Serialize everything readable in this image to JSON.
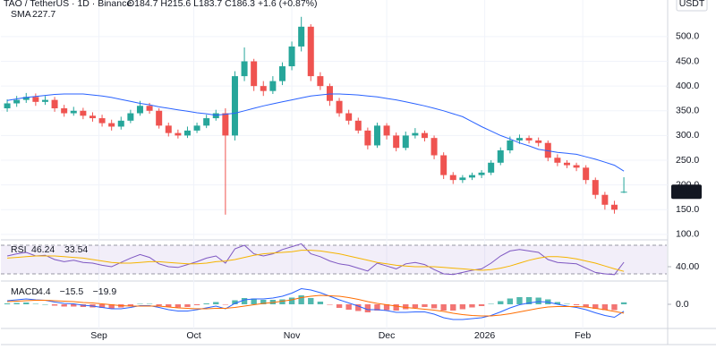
{
  "chart_data": [
    {
      "type": "candlestick",
      "title": "TAO / TetherUS · 1D · Binance",
      "ohlc_legend": "O184.7 H215.6 L183.7 C186.3 +1.6 (+0.87%)",
      "currency": "USDT",
      "last_price": 186.3,
      "x": [
        0,
        3,
        6,
        9,
        12,
        15,
        18,
        21,
        24,
        27,
        30,
        33,
        36,
        39,
        42,
        45,
        48,
        51,
        54,
        57,
        60,
        63,
        66,
        69,
        72,
        75,
        78,
        81,
        84,
        87,
        90,
        93,
        96,
        99,
        102,
        105,
        108,
        111,
        114,
        117,
        120,
        123,
        126,
        129,
        132,
        135,
        138,
        141,
        144,
        147,
        150,
        153,
        156,
        159,
        162,
        165,
        168,
        171,
        174,
        177,
        180,
        183,
        186,
        189,
        192,
        195
      ],
      "xlim": [
        -2,
        208
      ],
      "xticks": [
        {
          "value": 29,
          "label": "Sep"
        },
        {
          "value": 59,
          "label": "Oct"
        },
        {
          "value": 90,
          "label": "Nov"
        },
        {
          "value": 120,
          "label": "Dec"
        },
        {
          "value": 151,
          "label": "2026"
        },
        {
          "value": 182,
          "label": "Feb"
        }
      ],
      "ylim": [
        89,
        574
      ],
      "yticks": [
        {
          "value": 100,
          "label": "100.0"
        },
        {
          "value": 150,
          "label": "150.0"
        },
        {
          "value": 200,
          "label": "200.0"
        },
        {
          "value": 250,
          "label": "250.0"
        },
        {
          "value": 300,
          "label": "300.0"
        },
        {
          "value": 350,
          "label": "350.0"
        },
        {
          "value": 400,
          "label": "400.0"
        },
        {
          "value": 450,
          "label": "450.0"
        },
        {
          "value": 500,
          "label": "500.0"
        }
      ],
      "grid": true,
      "up_color": "#26a69a",
      "down_color": "#ef5350",
      "open": [
        355,
        365,
        372,
        378,
        368,
        372,
        355,
        345,
        350,
        340,
        335,
        325,
        318,
        330,
        345,
        360,
        350,
        320,
        305,
        300,
        310,
        320,
        335,
        345,
        300,
        420,
        450,
        400,
        390,
        410,
        440,
        480,
        520,
        420,
        400,
        370,
        345,
        330,
        310,
        280,
        320,
        300,
        275,
        300,
        305,
        295,
        260,
        220,
        210,
        215,
        220,
        225,
        245,
        270,
        290,
        295,
        290,
        285,
        255,
        245,
        240,
        235,
        210,
        180,
        160,
        184.7
      ],
      "high": [
        373,
        380,
        386,
        385,
        380,
        378,
        362,
        358,
        356,
        347,
        342,
        332,
        338,
        352,
        370,
        366,
        355,
        326,
        312,
        318,
        326,
        342,
        352,
        355,
        430,
        478,
        455,
        410,
        420,
        448,
        490,
        540,
        525,
        428,
        405,
        376,
        352,
        336,
        316,
        326,
        325,
        306,
        308,
        315,
        310,
        300,
        266,
        226,
        220,
        225,
        230,
        250,
        276,
        298,
        302,
        300,
        296,
        290,
        262,
        250,
        245,
        240,
        215,
        186,
        168,
        215.6
      ],
      "low": [
        348,
        358,
        366,
        360,
        362,
        348,
        338,
        340,
        333,
        328,
        318,
        310,
        312,
        325,
        340,
        344,
        314,
        298,
        294,
        295,
        305,
        315,
        330,
        140,
        290,
        410,
        390,
        380,
        384,
        402,
        432,
        470,
        410,
        392,
        360,
        338,
        322,
        304,
        272,
        275,
        292,
        268,
        270,
        294,
        288,
        252,
        212,
        202,
        204,
        210,
        214,
        220,
        240,
        264,
        283,
        284,
        278,
        248,
        238,
        234,
        228,
        202,
        172,
        150,
        142,
        183.7
      ],
      "close": [
        365,
        372,
        378,
        368,
        372,
        355,
        345,
        350,
        340,
        335,
        325,
        318,
        330,
        345,
        360,
        350,
        320,
        305,
        300,
        310,
        320,
        335,
        345,
        300,
        420,
        450,
        400,
        390,
        410,
        440,
        480,
        520,
        420,
        400,
        370,
        345,
        330,
        310,
        280,
        320,
        300,
        275,
        300,
        305,
        295,
        260,
        220,
        210,
        215,
        220,
        225,
        245,
        270,
        290,
        295,
        290,
        285,
        255,
        245,
        240,
        235,
        210,
        180,
        160,
        150,
        186.3
      ],
      "series": [
        {
          "name": "SMA",
          "legend_value": 227.7,
          "color": "#2962ff",
          "values": [
            371,
            374,
            377,
            379,
            381,
            383,
            384,
            384,
            384,
            382,
            380,
            377,
            373,
            369,
            365,
            362,
            358,
            355,
            352,
            349,
            346,
            344,
            341,
            343,
            345,
            350,
            355,
            360,
            364,
            368,
            372,
            376,
            380,
            382,
            384,
            384,
            383,
            382,
            380,
            378,
            375,
            372,
            368,
            364,
            360,
            355,
            350,
            344,
            338,
            328,
            318,
            309,
            300,
            293,
            285,
            279,
            272,
            269,
            266,
            264,
            262,
            257,
            252,
            246,
            240,
            228
          ]
        }
      ]
    },
    {
      "type": "line",
      "title": "RSI",
      "legend_values": [
        46.24,
        33.54
      ],
      "ylim": [
        20,
        75
      ],
      "yticks": [
        {
          "value": 40,
          "label": "40.00"
        }
      ],
      "band": [
        30,
        70
      ],
      "band_color": "#7e57c2",
      "series": [
        {
          "color": "#7e57c2",
          "values": [
            55,
            58,
            60,
            55,
            56,
            50,
            47,
            49,
            46,
            45,
            42,
            40,
            46,
            52,
            57,
            53,
            44,
            40,
            39,
            43,
            47,
            52,
            55,
            45,
            65,
            70,
            58,
            55,
            58,
            64,
            68,
            72,
            58,
            54,
            48,
            44,
            42,
            38,
            34,
            45,
            41,
            37,
            44,
            46,
            43,
            36,
            30,
            29,
            32,
            35,
            37,
            45,
            55,
            62,
            64,
            62,
            60,
            50,
            46,
            45,
            44,
            38,
            32,
            30,
            29,
            46.24
          ]
        },
        {
          "color": "#f5b400",
          "values": [
            52,
            53,
            54,
            55,
            55,
            55,
            54,
            53,
            52,
            50,
            48,
            46,
            45,
            45,
            46,
            47,
            47,
            46,
            45,
            44,
            44,
            45,
            47,
            48,
            50,
            53,
            56,
            58,
            59,
            60,
            61,
            63,
            63,
            62,
            60,
            58,
            55,
            52,
            49,
            46,
            44,
            42,
            41,
            40,
            40,
            40,
            39,
            38,
            37,
            36,
            35,
            36,
            38,
            41,
            45,
            49,
            52,
            54,
            54,
            53,
            51,
            48,
            45,
            41,
            37,
            33.54
          ]
        }
      ]
    },
    {
      "type": "macd",
      "title": "MACD",
      "legend_values": [
        4.4,
        {
          "value": -15.5,
          "label": "−15.5"
        },
        {
          "value": -19.9,
          "label": "−19.9"
        }
      ],
      "ylim": [
        -54,
        48
      ],
      "yticks": [
        {
          "value": 0,
          "label": "0.0"
        }
      ],
      "histogram": {
        "up_color": "#26a69a",
        "down_color": "#ef5350",
        "values": [
          2,
          3,
          4,
          1,
          0,
          -3,
          -5,
          -5,
          -6,
          -7,
          -8,
          -9,
          -7,
          -3,
          1,
          1,
          -3,
          -6,
          -7,
          -6,
          -2,
          2,
          5,
          -1,
          9,
          14,
          13,
          10,
          10,
          11,
          15,
          20,
          14,
          6,
          -1,
          -8,
          -12,
          -15,
          -18,
          -14,
          -13,
          -14,
          -11,
          -8,
          -6,
          -9,
          -14,
          -14,
          -11,
          -7,
          -4,
          1,
          7,
          13,
          16,
          16,
          15,
          11,
          5,
          1,
          -2,
          -6,
          -10,
          -13,
          -13,
          4.4
        ]
      },
      "series": [
        {
          "color": "#2962ff",
          "values": [
            8,
            10,
            12,
            10,
            9,
            5,
            2,
            1,
            -2,
            -4,
            -7,
            -10,
            -10,
            -7,
            -3,
            -3,
            -7,
            -12,
            -15,
            -15,
            -12,
            -8,
            -4,
            -10,
            2,
            10,
            12,
            12,
            14,
            18,
            25,
            35,
            32,
            26,
            18,
            10,
            3,
            -4,
            -12,
            -12,
            -14,
            -18,
            -18,
            -17,
            -17,
            -22,
            -30,
            -34,
            -34,
            -32,
            -30,
            -25,
            -17,
            -8,
            -1,
            3,
            6,
            5,
            0,
            -4,
            -7,
            -12,
            -19,
            -25,
            -29,
            -15.5
          ]
        },
        {
          "color": "#ff6d00",
          "values": [
            6,
            7,
            8,
            9,
            9,
            8,
            7,
            6,
            4,
            3,
            1,
            -1,
            -3,
            -4,
            -4,
            -4,
            -4,
            -6,
            -8,
            -9,
            -10,
            -10,
            -9,
            -9,
            -7,
            -4,
            -1,
            2,
            4,
            7,
            10,
            15,
            18,
            20,
            19,
            18,
            15,
            11,
            6,
            2,
            -1,
            -4,
            -7,
            -9,
            -11,
            -13,
            -16,
            -20,
            -23,
            -25,
            -26,
            -26,
            -24,
            -21,
            -17,
            -13,
            -9,
            -6,
            -5,
            -5,
            -5,
            -6,
            -9,
            -12,
            -16,
            -19.9
          ]
        }
      ]
    }
  ]
}
